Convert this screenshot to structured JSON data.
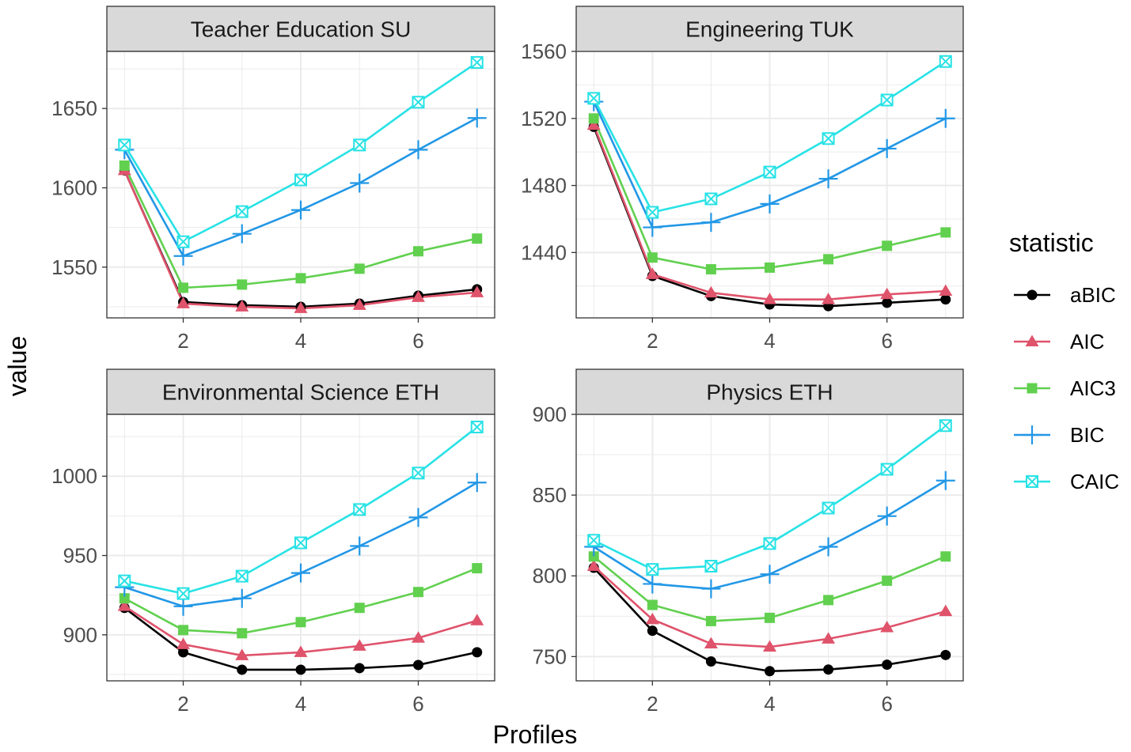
{
  "chart_data": {
    "type": "line",
    "xlabel": "Profiles",
    "ylabel": "value",
    "legend_title": "statistic",
    "legend_position": "right",
    "x": [
      1,
      2,
      3,
      4,
      5,
      6,
      7
    ],
    "xticks": [
      2,
      4,
      6
    ],
    "series_styles": [
      {
        "name": "aBIC",
        "color": "#000000",
        "marker": "circle"
      },
      {
        "name": "AIC",
        "color": "#DF536B",
        "marker": "triangle"
      },
      {
        "name": "AIC3",
        "color": "#61D04F",
        "marker": "square"
      },
      {
        "name": "BIC",
        "color": "#2297E6",
        "marker": "plus"
      },
      {
        "name": "CAIC",
        "color": "#28E2E5",
        "marker": "boxed-x"
      }
    ],
    "panels": [
      {
        "title": "Teacher Education SU",
        "ylim": [
          1518,
          1686
        ],
        "yticks": [
          1550,
          1600,
          1650
        ],
        "series": [
          {
            "name": "aBIC",
            "values": [
              1611,
              1528,
              1526,
              1525,
              1527,
              1532,
              1536
            ]
          },
          {
            "name": "AIC",
            "values": [
              1611,
              1527,
              1525,
              1524,
              1526,
              1531,
              1534
            ]
          },
          {
            "name": "AIC3",
            "values": [
              1614,
              1537,
              1539,
              1543,
              1549,
              1560,
              1568
            ]
          },
          {
            "name": "BIC",
            "values": [
              1624,
              1557,
              1571,
              1586,
              1603,
              1624,
              1644
            ]
          },
          {
            "name": "CAIC",
            "values": [
              1627,
              1566,
              1585,
              1605,
              1627,
              1654,
              1679
            ]
          }
        ]
      },
      {
        "title": "Engineering TUK",
        "ylim": [
          1401,
          1560
        ],
        "yticks": [
          1440,
          1480,
          1520,
          1560
        ],
        "series": [
          {
            "name": "aBIC",
            "values": [
              1515,
              1426,
              1414,
              1409,
              1408,
              1410,
              1412
            ]
          },
          {
            "name": "AIC",
            "values": [
              1516,
              1427,
              1416,
              1412,
              1412,
              1415,
              1417
            ]
          },
          {
            "name": "AIC3",
            "values": [
              1520,
              1437,
              1430,
              1431,
              1436,
              1444,
              1452
            ]
          },
          {
            "name": "BIC",
            "values": [
              1530,
              1455,
              1458,
              1469,
              1484,
              1502,
              1520
            ]
          },
          {
            "name": "CAIC",
            "values": [
              1532,
              1464,
              1472,
              1488,
              1508,
              1531,
              1554
            ]
          }
        ]
      },
      {
        "title": "Environmental Science ETH",
        "ylim": [
          871,
          1039
        ],
        "yticks": [
          900,
          950,
          1000
        ],
        "series": [
          {
            "name": "aBIC",
            "values": [
              917,
              889,
              878,
              878,
              879,
              881,
              889
            ]
          },
          {
            "name": "AIC",
            "values": [
              918,
              894,
              887,
              889,
              893,
              898,
              909
            ]
          },
          {
            "name": "AIC3",
            "values": [
              923,
              903,
              901,
              908,
              917,
              927,
              942
            ]
          },
          {
            "name": "BIC",
            "values": [
              930,
              918,
              923,
              939,
              956,
              974,
              996
            ]
          },
          {
            "name": "CAIC",
            "values": [
              934,
              926,
              937,
              958,
              979,
              1002,
              1031
            ]
          }
        ]
      },
      {
        "title": "Physics ETH",
        "ylim": [
          735,
          900
        ],
        "yticks": [
          750,
          800,
          850,
          900
        ],
        "series": [
          {
            "name": "aBIC",
            "values": [
              805,
              766,
              747,
              741,
              742,
              745,
              751
            ]
          },
          {
            "name": "AIC",
            "values": [
              806,
              773,
              758,
              756,
              761,
              768,
              778
            ]
          },
          {
            "name": "AIC3",
            "values": [
              812,
              782,
              772,
              774,
              785,
              797,
              812
            ]
          },
          {
            "name": "BIC",
            "values": [
              818,
              795,
              792,
              801,
              818,
              837,
              859
            ]
          },
          {
            "name": "CAIC",
            "values": [
              822,
              804,
              806,
              820,
              842,
              866,
              893
            ]
          }
        ]
      }
    ]
  }
}
